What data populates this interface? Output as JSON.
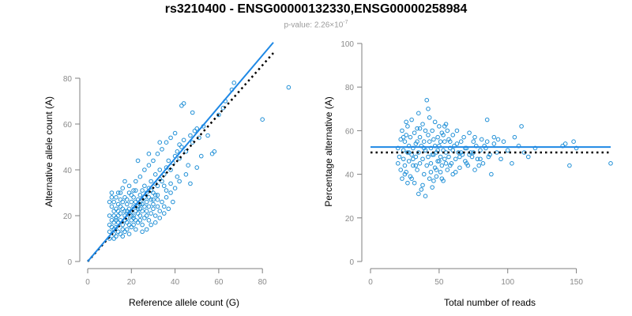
{
  "title": "rs3210400 - ENSG00000132330,ENSG00000258984",
  "subtitle": {
    "prefix": "p-value: 2.26×10",
    "exponent": "-7"
  },
  "colors": {
    "points": "#1f8fd6",
    "fit_line": "#1e88e5",
    "reference_line": "#000000",
    "axis": "#7f7f7f"
  },
  "chart_data": [
    {
      "type": "scatter",
      "xlabel": "Reference allele count (G)",
      "ylabel": "Alternative allele count (A)",
      "xlim": [
        0,
        85
      ],
      "ylim": [
        0,
        80
      ],
      "xticks": [
        0,
        20,
        40,
        60,
        80
      ],
      "yticks": [
        0,
        20,
        40,
        60,
        80
      ],
      "fit_line": {
        "x0": 0,
        "y0": 0,
        "x1": 85,
        "y1": 95.6
      },
      "reference_line": {
        "x0": 0,
        "y0": 0,
        "x1": 85,
        "y1": 91
      },
      "points": [
        [
          10,
          10
        ],
        [
          10,
          13
        ],
        [
          10,
          16
        ],
        [
          11,
          18
        ],
        [
          12,
          20
        ],
        [
          12,
          14
        ],
        [
          12,
          12
        ],
        [
          13,
          11
        ],
        [
          13,
          15
        ],
        [
          13,
          19
        ],
        [
          14,
          17
        ],
        [
          14,
          13
        ],
        [
          14,
          22
        ],
        [
          15,
          18
        ],
        [
          15,
          21
        ],
        [
          15,
          24
        ],
        [
          16,
          16
        ],
        [
          16,
          14
        ],
        [
          16,
          26
        ],
        [
          17,
          20
        ],
        [
          17,
          22
        ],
        [
          17,
          28
        ],
        [
          18,
          17
        ],
        [
          18,
          25
        ],
        [
          18,
          19
        ],
        [
          19,
          23
        ],
        [
          19,
          21
        ],
        [
          19,
          30
        ],
        [
          20,
          22
        ],
        [
          20,
          18
        ],
        [
          20,
          26
        ],
        [
          21,
          24
        ],
        [
          21,
          20
        ],
        [
          21,
          28
        ],
        [
          22,
          26
        ],
        [
          22,
          22
        ],
        [
          22,
          31
        ],
        [
          23,
          24
        ],
        [
          23,
          21
        ],
        [
          23,
          27
        ],
        [
          24,
          25
        ],
        [
          24,
          29
        ],
        [
          24,
          23
        ],
        [
          25,
          27
        ],
        [
          25,
          31
        ],
        [
          25,
          22
        ],
        [
          26,
          28
        ],
        [
          26,
          33
        ],
        [
          27,
          30
        ],
        [
          27,
          26
        ],
        [
          28,
          32
        ],
        [
          28,
          28
        ],
        [
          29,
          31
        ],
        [
          29,
          35
        ],
        [
          30,
          30
        ],
        [
          30,
          27
        ],
        [
          31,
          34
        ],
        [
          31,
          38
        ],
        [
          32,
          33
        ],
        [
          32,
          29
        ],
        [
          33,
          36
        ],
        [
          33,
          40
        ],
        [
          34,
          35
        ],
        [
          35,
          38
        ],
        [
          35,
          33
        ],
        [
          36,
          41
        ],
        [
          37,
          44
        ],
        [
          38,
          40
        ],
        [
          39,
          43
        ],
        [
          40,
          46
        ],
        [
          41,
          48
        ],
        [
          42,
          45
        ],
        [
          43,
          50
        ],
        [
          44,
          53
        ],
        [
          45,
          48
        ],
        [
          47,
          55
        ],
        [
          48,
          52
        ],
        [
          50,
          58
        ],
        [
          12,
          26
        ],
        [
          11,
          24
        ],
        [
          13,
          28
        ],
        [
          14,
          30
        ],
        [
          11,
          30
        ],
        [
          12,
          10
        ],
        [
          15,
          12
        ],
        [
          16,
          11
        ],
        [
          17,
          13
        ],
        [
          18,
          14
        ],
        [
          19,
          12
        ],
        [
          20,
          15
        ],
        [
          21,
          16
        ],
        [
          22,
          14
        ],
        [
          23,
          17
        ],
        [
          24,
          18
        ],
        [
          25,
          16
        ],
        [
          26,
          19
        ],
        [
          27,
          20
        ],
        [
          28,
          18
        ],
        [
          29,
          21
        ],
        [
          30,
          23
        ],
        [
          31,
          20
        ],
        [
          32,
          24
        ],
        [
          33,
          22
        ],
        [
          34,
          26
        ],
        [
          35,
          24
        ],
        [
          36,
          28
        ],
        [
          38,
          30
        ],
        [
          40,
          32
        ],
        [
          42,
          35
        ],
        [
          45,
          38
        ],
        [
          19,
          33
        ],
        [
          20,
          29
        ],
        [
          21,
          31
        ],
        [
          17,
          35
        ],
        [
          16,
          32
        ],
        [
          15,
          30
        ],
        [
          18,
          27
        ],
        [
          22,
          35
        ],
        [
          24,
          37
        ],
        [
          26,
          40
        ],
        [
          28,
          42
        ],
        [
          30,
          44
        ],
        [
          32,
          47
        ],
        [
          34,
          49
        ],
        [
          36,
          52
        ],
        [
          38,
          54
        ],
        [
          40,
          56
        ],
        [
          12,
          17
        ],
        [
          13,
          23
        ],
        [
          14,
          25
        ],
        [
          10,
          20
        ],
        [
          10,
          26
        ],
        [
          11,
          28
        ],
        [
          25,
          13
        ],
        [
          27,
          14
        ],
        [
          29,
          16
        ],
        [
          31,
          17
        ],
        [
          33,
          19
        ],
        [
          35,
          21
        ],
        [
          37,
          23
        ],
        [
          39,
          26
        ],
        [
          16,
          23
        ],
        [
          17,
          18
        ],
        [
          18,
          22
        ],
        [
          19,
          16
        ],
        [
          20,
          20
        ],
        [
          21,
          19
        ],
        [
          22,
          18
        ],
        [
          23,
          23
        ],
        [
          24,
          20
        ],
        [
          25,
          25
        ],
        [
          26,
          24
        ],
        [
          27,
          22
        ],
        [
          28,
          24
        ],
        [
          29,
          27
        ],
        [
          30,
          25
        ],
        [
          31,
          29
        ],
        [
          32,
          27
        ],
        [
          43,
          68
        ],
        [
          48,
          65
        ],
        [
          62,
          67
        ],
        [
          63,
          70
        ],
        [
          66,
          75
        ],
        [
          67,
          78
        ],
        [
          55,
          55
        ],
        [
          57,
          47
        ],
        [
          58,
          48
        ],
        [
          80,
          62
        ],
        [
          92,
          76
        ],
        [
          44,
          69
        ],
        [
          49,
          57
        ],
        [
          51,
          54
        ],
        [
          53,
          59
        ],
        [
          60,
          64
        ],
        [
          42,
          51
        ],
        [
          41,
          37
        ],
        [
          38,
          34
        ],
        [
          36,
          31
        ],
        [
          47,
          34
        ],
        [
          50,
          41
        ],
        [
          52,
          46
        ],
        [
          46,
          42
        ],
        [
          23,
          44
        ],
        [
          28,
          47
        ],
        [
          33,
          52
        ],
        [
          15,
          27
        ],
        [
          14,
          20
        ],
        [
          13,
          18
        ],
        [
          12,
          22
        ],
        [
          11,
          15
        ]
      ]
    },
    {
      "type": "scatter",
      "xlabel": "Total number of reads",
      "ylabel": "Percentage alternative (A)",
      "xlim": [
        0,
        175
      ],
      "ylim": [
        0,
        100
      ],
      "xticks": [
        0,
        50,
        100,
        150
      ],
      "yticks": [
        0,
        20,
        40,
        60,
        80,
        100
      ],
      "fit_line": {
        "y": 52.5
      },
      "reference_line": {
        "y": 50
      },
      "points": [
        [
          20,
          45
        ],
        [
          20,
          52
        ],
        [
          21,
          48
        ],
        [
          22,
          56
        ],
        [
          22,
          42
        ],
        [
          23,
          60
        ],
        [
          23,
          38
        ],
        [
          24,
          51
        ],
        [
          24,
          47
        ],
        [
          25,
          55
        ],
        [
          25,
          44
        ],
        [
          26,
          58
        ],
        [
          26,
          41
        ],
        [
          27,
          50
        ],
        [
          27,
          62
        ],
        [
          28,
          46
        ],
        [
          28,
          53
        ],
        [
          29,
          39
        ],
        [
          29,
          57
        ],
        [
          30,
          49
        ],
        [
          30,
          65
        ],
        [
          31,
          44
        ],
        [
          31,
          52
        ],
        [
          32,
          59
        ],
        [
          32,
          36
        ],
        [
          33,
          48
        ],
        [
          33,
          54
        ],
        [
          34,
          61
        ],
        [
          34,
          42
        ],
        [
          35,
          50
        ],
        [
          35,
          68
        ],
        [
          36,
          45
        ],
        [
          36,
          57
        ],
        [
          37,
          33
        ],
        [
          37,
          53
        ],
        [
          38,
          47
        ],
        [
          38,
          63
        ],
        [
          39,
          40
        ],
        [
          39,
          55
        ],
        [
          40,
          30
        ],
        [
          40,
          51
        ],
        [
          41,
          74
        ],
        [
          41,
          44
        ],
        [
          42,
          58
        ],
        [
          42,
          48
        ],
        [
          43,
          66
        ],
        [
          43,
          38
        ],
        [
          44,
          52
        ],
        [
          44,
          45
        ],
        [
          45,
          60
        ],
        [
          45,
          34
        ],
        [
          46,
          49
        ],
        [
          46,
          56
        ],
        [
          47,
          43
        ],
        [
          47,
          64
        ],
        [
          48,
          50
        ],
        [
          48,
          39
        ],
        [
          49,
          57
        ],
        [
          49,
          46
        ],
        [
          50,
          62
        ],
        [
          50,
          53
        ],
        [
          51,
          41
        ],
        [
          51,
          48
        ],
        [
          52,
          59
        ],
        [
          52,
          44
        ],
        [
          53,
          51
        ],
        [
          53,
          37
        ],
        [
          54,
          55
        ],
        [
          54,
          47
        ],
        [
          55,
          63
        ],
        [
          55,
          50
        ],
        [
          56,
          42
        ],
        [
          57,
          56
        ],
        [
          57,
          48
        ],
        [
          58,
          52
        ],
        [
          59,
          45
        ],
        [
          60,
          58
        ],
        [
          60,
          40
        ],
        [
          61,
          53
        ],
        [
          62,
          47
        ],
        [
          63,
          60
        ],
        [
          64,
          50
        ],
        [
          65,
          43
        ],
        [
          66,
          55
        ],
        [
          67,
          49
        ],
        [
          68,
          57
        ],
        [
          69,
          46
        ],
        [
          70,
          52
        ],
        [
          71,
          44
        ],
        [
          72,
          59
        ],
        [
          73,
          50
        ],
        [
          74,
          48
        ],
        [
          75,
          55
        ],
        [
          76,
          42
        ],
        [
          77,
          53
        ],
        [
          78,
          47
        ],
        [
          80,
          51
        ],
        [
          81,
          56
        ],
        [
          82,
          45
        ],
        [
          84,
          52
        ],
        [
          85,
          65
        ],
        [
          86,
          48
        ],
        [
          88,
          40
        ],
        [
          90,
          54
        ],
        [
          92,
          50
        ],
        [
          95,
          47
        ],
        [
          97,
          55
        ],
        [
          100,
          51
        ],
        [
          103,
          45
        ],
        [
          105,
          57
        ],
        [
          108,
          53
        ],
        [
          110,
          62
        ],
        [
          112,
          50
        ],
        [
          115,
          48
        ],
        [
          120,
          52
        ],
        [
          140,
          53
        ],
        [
          142,
          54
        ],
        [
          145,
          44
        ],
        [
          148,
          55
        ],
        [
          150,
          52
        ],
        [
          175,
          45
        ],
        [
          25,
          40
        ],
        [
          27,
          36
        ],
        [
          30,
          38
        ],
        [
          33,
          44
        ],
        [
          35,
          31
        ],
        [
          38,
          35
        ],
        [
          40,
          60
        ],
        [
          42,
          70
        ],
        [
          44,
          41
        ],
        [
          46,
          37
        ],
        [
          48,
          42
        ],
        [
          50,
          46
        ],
        [
          52,
          38
        ],
        [
          54,
          62
        ],
        [
          56,
          60
        ],
        [
          58,
          44
        ],
        [
          62,
          41
        ],
        [
          65,
          48
        ],
        [
          70,
          45
        ],
        [
          75,
          50
        ],
        [
          80,
          47
        ],
        [
          85,
          55
        ],
        [
          90,
          57
        ],
        [
          24,
          57
        ],
        [
          26,
          64
        ],
        [
          28,
          50
        ],
        [
          31,
          47
        ],
        [
          34,
          55
        ],
        [
          36,
          61
        ],
        [
          39,
          52
        ],
        [
          43,
          55
        ],
        [
          45,
          49
        ],
        [
          47,
          53
        ],
        [
          49,
          51
        ],
        [
          51,
          55
        ],
        [
          53,
          58
        ],
        [
          55,
          45
        ],
        [
          58,
          55
        ],
        [
          60,
          51
        ],
        [
          63,
          54
        ],
        [
          66,
          50
        ],
        [
          69,
          52
        ],
        [
          72,
          49
        ],
        [
          76,
          57
        ],
        [
          79,
          44
        ],
        [
          83,
          53
        ],
        [
          87,
          49
        ],
        [
          93,
          56
        ]
      ]
    }
  ]
}
